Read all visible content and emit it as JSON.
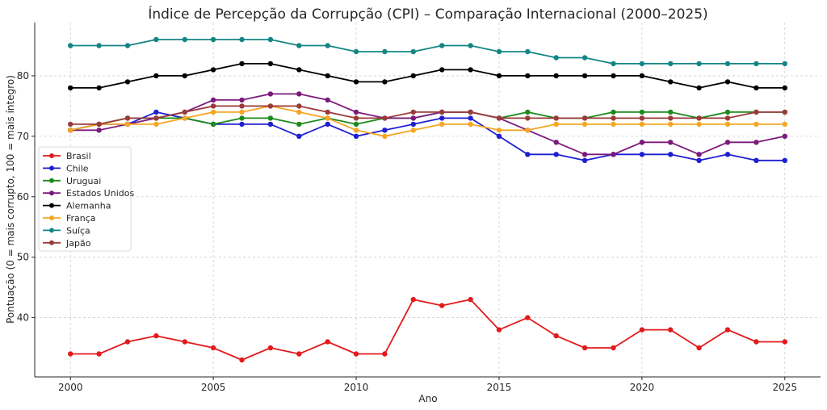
{
  "chart_data": {
    "type": "line",
    "title": "Índice de Percepção da Corrupção (CPI) – Comparação Internacional (2000–2025)",
    "xlabel": "Ano",
    "ylabel": "Pontuação (0 = mais corrupto, 100 = mais íntegro)",
    "x": [
      2000,
      2001,
      2002,
      2003,
      2004,
      2005,
      2006,
      2007,
      2008,
      2009,
      2010,
      2011,
      2012,
      2013,
      2014,
      2015,
      2016,
      2017,
      2018,
      2019,
      2020,
      2021,
      2022,
      2023,
      2024,
      2025
    ],
    "xticks": [
      2000,
      2005,
      2010,
      2015,
      2020,
      2025
    ],
    "yticks": [
      40,
      50,
      60,
      70,
      80
    ],
    "xlim": [
      1998.75,
      2026.25
    ],
    "ylim": [
      30.2,
      88.8
    ],
    "grid": true,
    "legend_position": "center-left",
    "series": [
      {
        "name": "Brasil",
        "color": "#e31a1c",
        "values": [
          34,
          34,
          36,
          37,
          36,
          35,
          33,
          35,
          34,
          36,
          34,
          34,
          43,
          42,
          43,
          38,
          40,
          37,
          35,
          35,
          38,
          38,
          35,
          38,
          36,
          36
        ]
      },
      {
        "name": "Chile",
        "color": "#1f1fd1",
        "values": [
          71,
          72,
          72,
          74,
          73,
          72,
          72,
          72,
          70,
          72,
          70,
          71,
          72,
          73,
          73,
          70,
          67,
          67,
          66,
          67,
          67,
          67,
          66,
          67,
          66,
          66
        ]
      },
      {
        "name": "Uruguai",
        "color": "#1b8a1b",
        "values": [
          71,
          72,
          73,
          73,
          73,
          72,
          73,
          73,
          72,
          73,
          72,
          73,
          73,
          74,
          74,
          73,
          74,
          73,
          73,
          74,
          74,
          74,
          73,
          74,
          74,
          74
        ]
      },
      {
        "name": "Estados Unidos",
        "color": "#7b1a7b",
        "values": [
          71,
          71,
          72,
          73,
          74,
          76,
          76,
          77,
          77,
          76,
          74,
          73,
          73,
          74,
          74,
          73,
          71,
          69,
          67,
          67,
          69,
          69,
          67,
          69,
          69,
          70
        ]
      },
      {
        "name": "Alemanha",
        "color": "#000000",
        "values": [
          78,
          78,
          79,
          80,
          80,
          81,
          82,
          82,
          81,
          80,
          79,
          79,
          80,
          81,
          81,
          80,
          80,
          80,
          80,
          80,
          80,
          79,
          78,
          79,
          78,
          78
        ]
      },
      {
        "name": "França",
        "color": "#f5a623",
        "values": [
          71,
          72,
          72,
          72,
          73,
          74,
          74,
          75,
          74,
          73,
          71,
          70,
          71,
          72,
          72,
          71,
          71,
          72,
          72,
          72,
          72,
          72,
          72,
          72,
          72,
          72
        ]
      },
      {
        "name": "Suíça",
        "color": "#138585",
        "values": [
          85,
          85,
          85,
          86,
          86,
          86,
          86,
          86,
          85,
          85,
          84,
          84,
          84,
          85,
          85,
          84,
          84,
          83,
          83,
          82,
          82,
          82,
          82,
          82,
          82,
          82
        ]
      },
      {
        "name": "Japão",
        "color": "#9a3a3a",
        "values": [
          72,
          72,
          73,
          73,
          74,
          75,
          75,
          75,
          75,
          74,
          73,
          73,
          74,
          74,
          74,
          73,
          73,
          73,
          73,
          73,
          73,
          73,
          73,
          73,
          74,
          74
        ]
      }
    ]
  }
}
